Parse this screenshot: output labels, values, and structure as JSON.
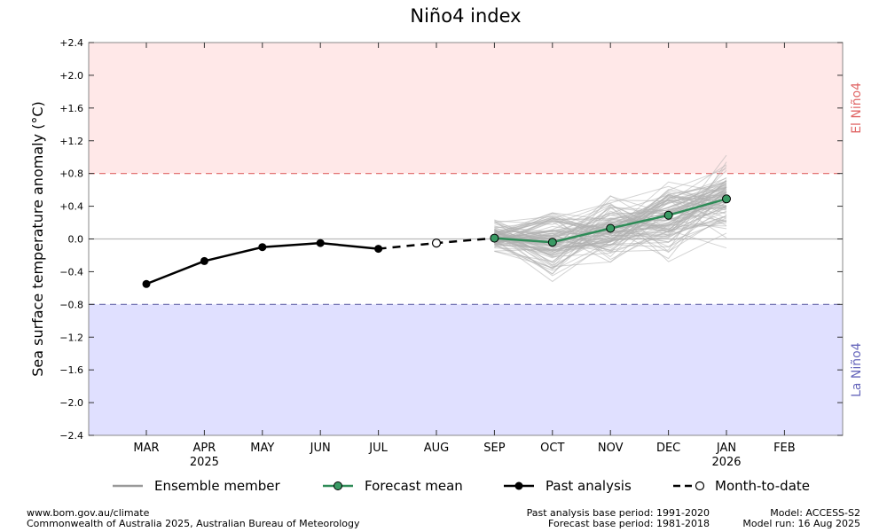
{
  "chart_data": {
    "type": "line",
    "title": "Niño4 index",
    "ylabel": "Sea surface temperature anomaly (°C)",
    "xlabel": "",
    "ylim": [
      -2.4,
      2.4
    ],
    "yticks": [
      2.4,
      2.0,
      1.6,
      1.2,
      0.8,
      0.4,
      0.0,
      -0.4,
      -0.8,
      -1.2,
      -1.6,
      -2.0,
      -2.4
    ],
    "ytick_labels": [
      "+2.4",
      "+2.0",
      "+1.6",
      "+1.2",
      "+0.8",
      "+0.4",
      "0.0",
      "−0.4",
      "−0.8",
      "−1.2",
      "−1.6",
      "−2.0",
      "−2.4"
    ],
    "months": [
      "MAR",
      "APR",
      "MAY",
      "JUN",
      "JUL",
      "AUG",
      "SEP",
      "OCT",
      "NOV",
      "DEC",
      "JAN",
      "FEB"
    ],
    "year_labels": [
      {
        "month": "APR",
        "text": "2025"
      },
      {
        "month": "JAN",
        "text": "2026"
      }
    ],
    "thresholds": {
      "el_nino": 0.8,
      "la_nina": -0.8,
      "el_nino_label": "El Niño4",
      "la_nina_label": "La Niño4"
    },
    "series": [
      {
        "name": "Past analysis",
        "x": [
          "MAR",
          "APR",
          "MAY",
          "JUN",
          "JUL"
        ],
        "values": [
          -0.55,
          -0.27,
          -0.1,
          -0.05,
          -0.12
        ]
      },
      {
        "name": "Month-to-date",
        "x": [
          "JUL",
          "AUG",
          "SEP"
        ],
        "values": [
          -0.12,
          -0.05,
          0.01
        ]
      },
      {
        "name": "Forecast mean",
        "x": [
          "SEP",
          "OCT",
          "NOV",
          "DEC",
          "JAN"
        ],
        "values": [
          0.01,
          -0.04,
          0.13,
          0.29,
          0.49
        ]
      },
      {
        "name": "Ensemble member",
        "x": [
          "SEP",
          "OCT",
          "NOV",
          "DEC",
          "JAN"
        ],
        "range_min": [
          -0.15,
          -0.6,
          -0.4,
          -0.3,
          -0.12
        ],
        "range_max": [
          0.36,
          0.32,
          0.6,
          0.9,
          1.18
        ]
      }
    ],
    "legend": {
      "placement": "bottom",
      "entries": [
        "Ensemble member",
        "Forecast mean",
        "Past analysis",
        "Month-to-date"
      ]
    },
    "colors": {
      "el_nino_fill": "#ffe8e8",
      "la_nina_fill": "#e0e0ff",
      "el_nino_line": "#e06666",
      "la_nina_line": "#6666aa",
      "el_nino_text": "#e06666",
      "la_nina_text": "#6666bb",
      "forecast_mean": "#2e8b57",
      "forecast_marker": "#3a9a64",
      "ensemble": "#b0b0b0",
      "past": "#000000"
    }
  },
  "footer": {
    "website": "www.bom.gov.au/climate",
    "copyright": "Commonwealth of Australia 2025, Australian Bureau of Meteorology",
    "past_base": "Past analysis base period: 1991-2020",
    "forecast_base": "Forecast base period: 1981-2018",
    "model": "Model: ACCESS-S2",
    "model_run": "Model run: 16 Aug 2025"
  }
}
